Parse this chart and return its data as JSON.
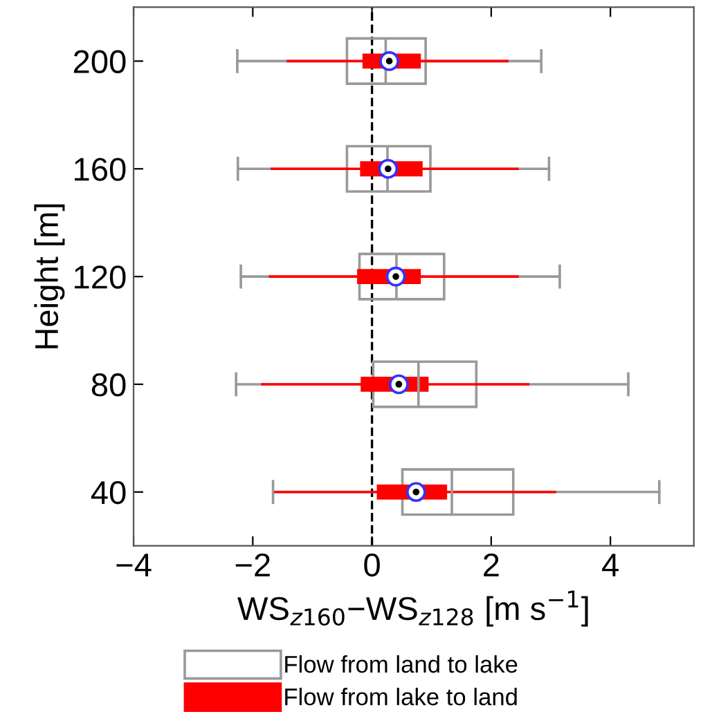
{
  "chart_data": {
    "type": "box",
    "orientation": "horizontal",
    "ylabel": "Height [m]",
    "xlabel": "WS$_{z160}$−WS$_{z128}$ [m s$^{−1}$]",
    "categories": [
      "200",
      "160",
      "120",
      "80",
      "40"
    ],
    "xlim": [
      -4,
      5.4
    ],
    "xticks": [
      {
        "value": -4,
        "label": "−4"
      },
      {
        "value": -2,
        "label": "−2"
      },
      0,
      2,
      4
    ],
    "legend": "bottom",
    "grid": false,
    "ref_lines": [
      {
        "axis": "x",
        "value": 0,
        "color": "#000000",
        "line_style": "dashed"
      }
    ],
    "series": [
      {
        "name": "Flow from land to lake",
        "color": "#999999",
        "boxes": [
          {
            "low": -2.26,
            "q1": -0.42,
            "median": 0.23,
            "q3": 0.9,
            "high": 2.84
          },
          {
            "low": -2.25,
            "q1": -0.42,
            "median": 0.26,
            "q3": 0.98,
            "high": 2.97
          },
          {
            "low": -2.2,
            "q1": -0.21,
            "median": 0.41,
            "q3": 1.21,
            "high": 3.15
          },
          {
            "low": -2.28,
            "q1": 0.02,
            "median": 0.78,
            "q3": 1.75,
            "high": 4.3
          },
          {
            "low": -1.66,
            "q1": 0.51,
            "median": 1.34,
            "q3": 2.37,
            "high": 4.82
          }
        ]
      },
      {
        "name": "Flow from lake to land",
        "color": "#ff0000",
        "boxes": [
          {
            "low": -1.41,
            "q1": -0.16,
            "median": 0.29,
            "q3": 0.82,
            "high": 2.27
          },
          {
            "low": -1.68,
            "q1": -0.2,
            "median": 0.27,
            "q3": 0.85,
            "high": 2.44
          },
          {
            "low": -1.71,
            "q1": -0.25,
            "median": 0.4,
            "q3": 0.82,
            "high": 2.44
          },
          {
            "low": -1.84,
            "q1": -0.19,
            "median": 0.45,
            "q3": 0.95,
            "high": 2.62
          },
          {
            "low": -1.62,
            "q1": 0.08,
            "median": 0.74,
            "q3": 1.26,
            "high": 3.07
          }
        ]
      }
    ]
  }
}
